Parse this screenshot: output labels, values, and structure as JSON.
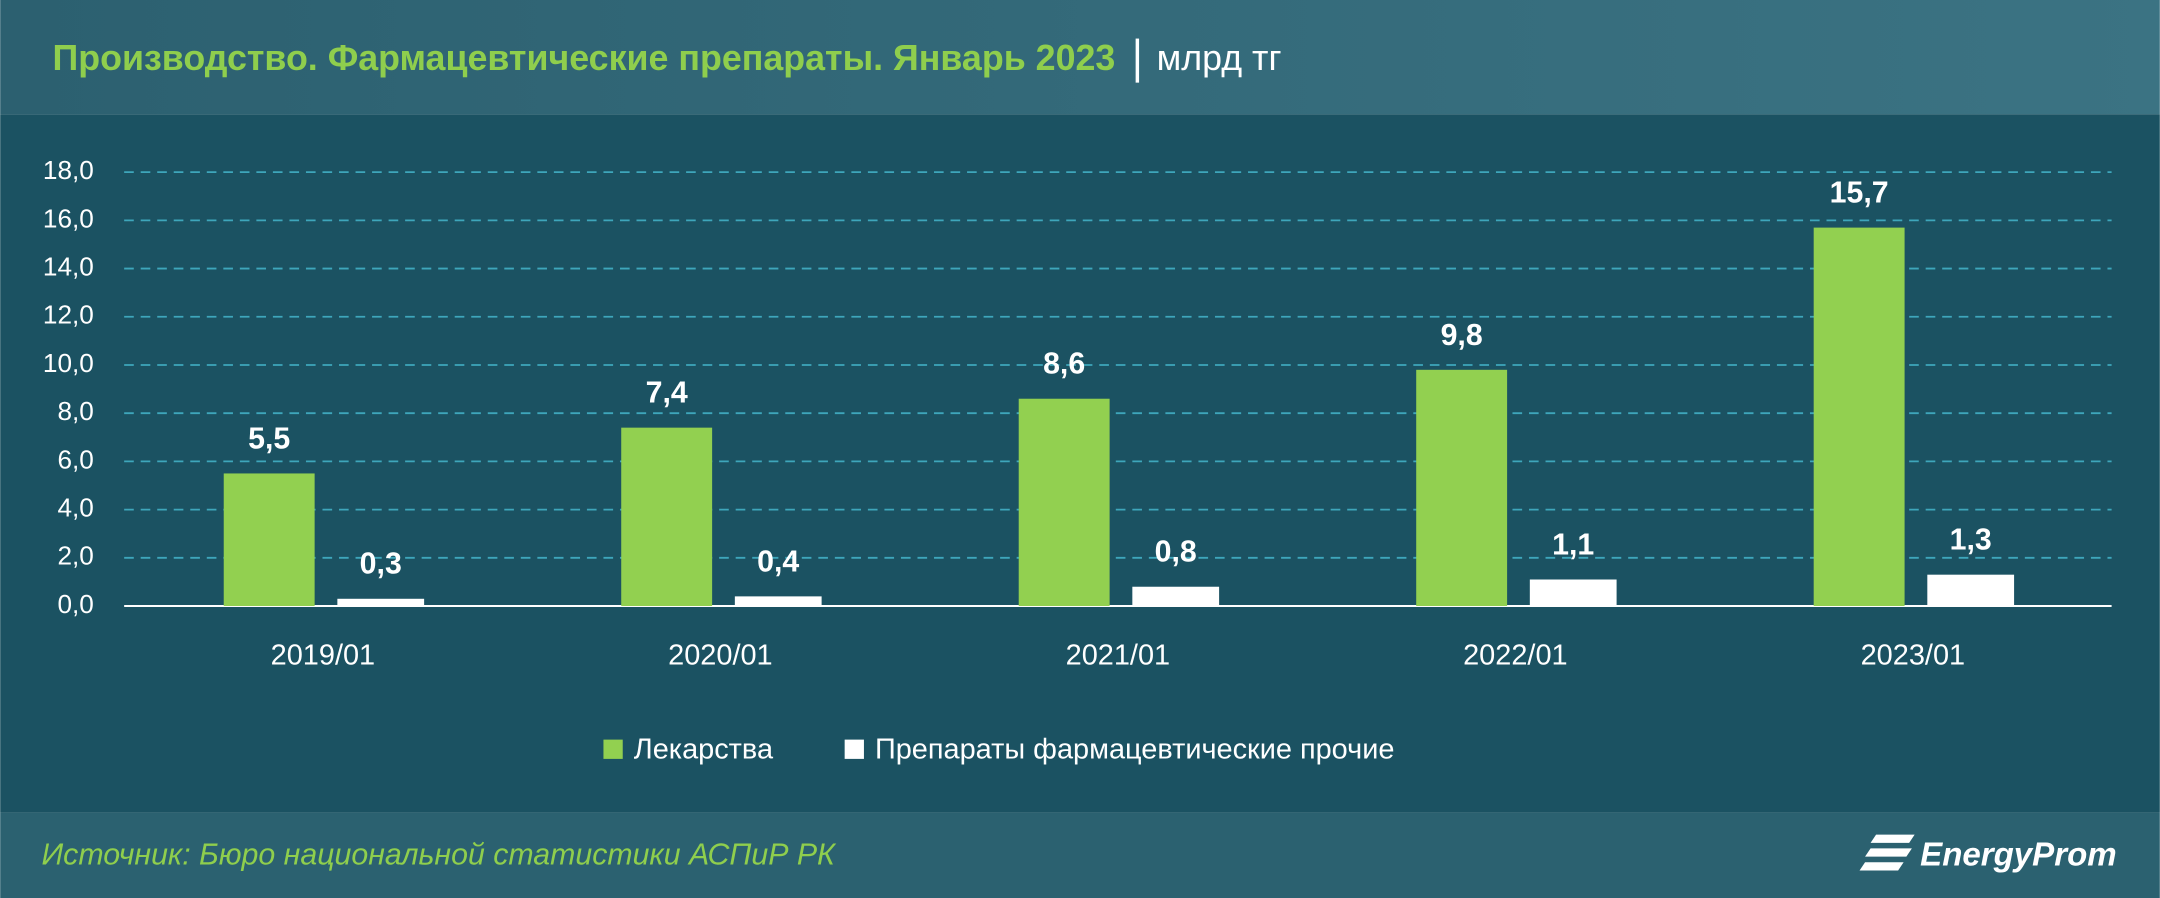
{
  "chart_data": {
    "type": "bar",
    "title": "Производство. Фармацевтические препараты. Январь 2023",
    "unit": "млрд тг",
    "categories": [
      "2019/01",
      "2020/01",
      "2021/01",
      "2022/01",
      "2023/01"
    ],
    "series": [
      {
        "name": "Лекарства",
        "color": "#92d050",
        "values": [
          5.5,
          7.4,
          8.6,
          9.8,
          15.7
        ],
        "value_labels": [
          "5,5",
          "7,4",
          "8,6",
          "9,8",
          "15,7"
        ]
      },
      {
        "name": "Препараты фармацевтические прочие",
        "color": "#ffffff",
        "values": [
          0.3,
          0.4,
          0.8,
          1.1,
          1.3
        ],
        "value_labels": [
          "0,3",
          "0,4",
          "0,8",
          "1,1",
          "1,3"
        ]
      }
    ],
    "ylim": [
      0,
      18
    ],
    "yticks": [
      {
        "value": 0,
        "label": "0,0"
      },
      {
        "value": 2,
        "label": "2,0"
      },
      {
        "value": 4,
        "label": "4,0"
      },
      {
        "value": 6,
        "label": "6,0"
      },
      {
        "value": 8,
        "label": "8,0"
      },
      {
        "value": 10,
        "label": "10,0"
      },
      {
        "value": 12,
        "label": "12,0"
      },
      {
        "value": 14,
        "label": "14,0"
      },
      {
        "value": 16,
        "label": "16,0"
      },
      {
        "value": 18,
        "label": "18,0"
      }
    ],
    "grid": true
  },
  "footer": {
    "source": "Источник: Бюро национальной статистики АСПиР РК",
    "logo": "EnergyProm"
  }
}
